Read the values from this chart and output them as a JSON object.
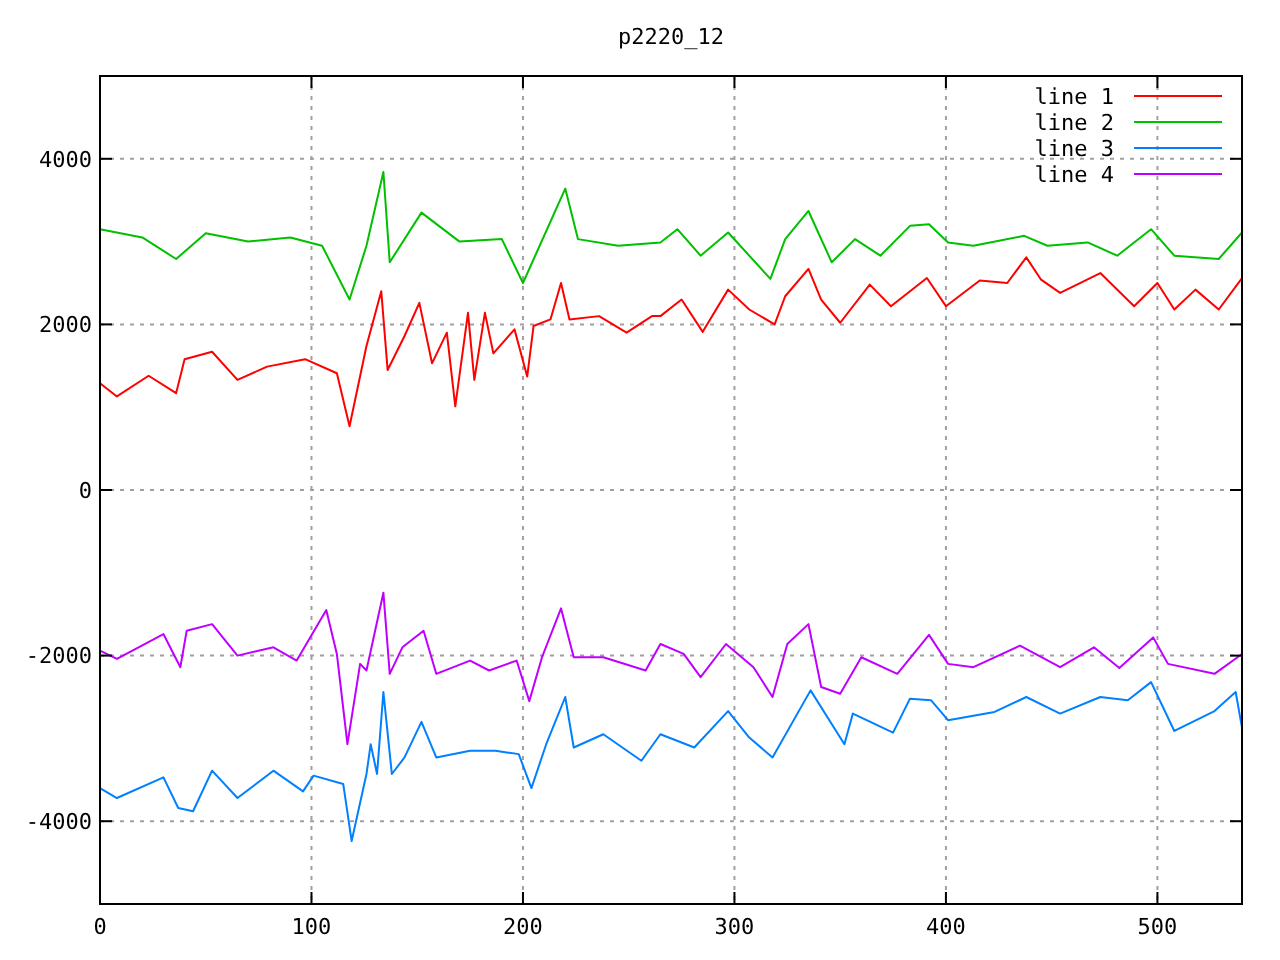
{
  "chart_data": {
    "type": "line",
    "title": "p2220_12",
    "xlim": [
      0,
      540
    ],
    "ylim": [
      -5000,
      5000
    ],
    "xticks": [
      0,
      100,
      200,
      300,
      400,
      500
    ],
    "yticks": [
      -4000,
      -2000,
      0,
      2000,
      4000
    ],
    "grid": true,
    "legend": "top right",
    "line_style": "solid",
    "marker": "none",
    "series": [
      {
        "name": "line 1",
        "color": "#ff0000",
        "x": [
          0,
          8,
          23,
          36,
          40,
          53,
          65,
          79,
          97,
          112,
          118,
          126,
          133,
          136,
          144,
          151,
          157,
          164,
          168,
          174,
          177,
          182,
          186,
          196,
          202,
          205,
          213,
          218,
          222,
          236,
          249,
          261,
          265,
          275,
          285,
          297,
          307,
          319,
          324,
          335,
          341,
          350,
          364,
          374,
          391,
          400,
          416,
          429,
          438,
          445,
          454,
          473,
          489,
          500,
          508,
          518,
          529,
          540
        ],
        "values": [
          1290,
          1130,
          1380,
          1170,
          1580,
          1670,
          1330,
          1490,
          1580,
          1410,
          770,
          1740,
          2400,
          1450,
          1860,
          2260,
          1530,
          1900,
          1010,
          2140,
          1330,
          2140,
          1650,
          1940,
          1370,
          1980,
          2060,
          2500,
          2060,
          2100,
          1900,
          2100,
          2100,
          2300,
          1910,
          2420,
          2180,
          2000,
          2340,
          2670,
          2300,
          2020,
          2480,
          2220,
          2560,
          2220,
          2530,
          2500,
          2810,
          2540,
          2380,
          2620,
          2220,
          2500,
          2180,
          2420,
          2180,
          2560
        ]
      },
      {
        "name": "line 2",
        "color": "#00c000",
        "x": [
          0,
          20,
          36,
          50,
          70,
          90,
          105,
          118,
          126,
          134,
          137,
          152,
          170,
          190,
          200,
          220,
          226,
          245,
          265,
          273,
          284,
          297,
          317,
          324,
          335,
          346,
          357,
          369,
          383,
          392,
          401,
          413,
          437,
          448,
          467,
          481,
          497,
          508,
          529,
          540
        ],
        "values": [
          3150,
          3050,
          2790,
          3100,
          3000,
          3050,
          2950,
          2300,
          2950,
          3840,
          2750,
          3350,
          3000,
          3030,
          2500,
          3640,
          3030,
          2950,
          2990,
          3150,
          2830,
          3110,
          2550,
          3030,
          3370,
          2750,
          3030,
          2830,
          3190,
          3210,
          2990,
          2950,
          3070,
          2950,
          2990,
          2830,
          3150,
          2830,
          2790,
          3110
        ]
      },
      {
        "name": "line 3",
        "color": "#0080ff",
        "x": [
          0,
          8,
          30,
          37,
          44,
          53,
          65,
          82,
          96,
          101,
          115,
          119,
          126,
          128,
          131,
          134,
          138,
          144,
          152,
          159,
          175,
          187,
          198,
          204,
          211,
          220,
          224,
          238,
          256,
          265,
          281,
          297,
          307,
          318,
          336,
          352,
          356,
          375,
          383,
          393,
          401,
          423,
          438,
          454,
          473,
          486,
          497,
          508,
          527,
          537,
          540
        ],
        "values": [
          -3600,
          -3720,
          -3470,
          -3840,
          -3880,
          -3390,
          -3720,
          -3390,
          -3640,
          -3450,
          -3550,
          -4240,
          -3430,
          -3070,
          -3430,
          -2440,
          -3430,
          -3230,
          -2800,
          -3230,
          -3150,
          -3150,
          -3190,
          -3600,
          -3070,
          -2500,
          -3110,
          -2950,
          -3270,
          -2950,
          -3110,
          -2670,
          -2990,
          -3230,
          -2420,
          -3070,
          -2700,
          -2930,
          -2520,
          -2540,
          -2780,
          -2680,
          -2500,
          -2700,
          -2500,
          -2540,
          -2320,
          -2910,
          -2670,
          -2440,
          -2870
        ]
      },
      {
        "name": "line 4",
        "color": "#c000ff",
        "x": [
          0,
          8,
          30,
          38,
          41,
          53,
          65,
          82,
          93,
          107,
          112,
          117,
          123,
          126,
          134,
          137,
          143,
          153,
          159,
          175,
          184,
          197,
          203,
          209,
          218,
          224,
          238,
          258,
          265,
          276,
          284,
          296,
          309,
          318,
          325,
          335,
          341,
          350,
          360,
          377,
          392,
          401,
          413,
          435,
          454,
          470,
          482,
          498,
          505,
          527,
          540
        ],
        "values": [
          -1940,
          -2040,
          -1740,
          -2140,
          -1700,
          -1620,
          -2000,
          -1900,
          -2060,
          -1450,
          -1980,
          -3070,
          -2100,
          -2180,
          -1240,
          -2220,
          -1900,
          -1700,
          -2220,
          -2060,
          -2180,
          -2060,
          -2550,
          -2020,
          -1430,
          -2020,
          -2020,
          -2180,
          -1860,
          -1980,
          -2260,
          -1860,
          -2140,
          -2500,
          -1860,
          -1620,
          -2380,
          -2460,
          -2020,
          -2220,
          -1750,
          -2100,
          -2140,
          -1880,
          -2140,
          -1900,
          -2150,
          -1780,
          -2100,
          -2220,
          -1980
        ]
      }
    ]
  }
}
